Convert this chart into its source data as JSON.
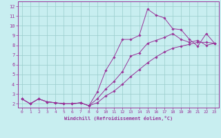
{
  "title": "",
  "xlabel": "Windchill (Refroidissement éolien,°C)",
  "ylabel": "",
  "bg_color": "#c8eef0",
  "line_color": "#993399",
  "grid_color": "#99cccc",
  "xlim": [
    -0.5,
    23.5
  ],
  "ylim": [
    1.6,
    12.5
  ],
  "xticks": [
    0,
    1,
    2,
    3,
    4,
    5,
    6,
    7,
    8,
    9,
    10,
    11,
    12,
    13,
    14,
    15,
    16,
    17,
    18,
    19,
    20,
    21,
    22,
    23
  ],
  "yticks": [
    2,
    3,
    4,
    5,
    6,
    7,
    8,
    9,
    10,
    11,
    12
  ],
  "line1_x": [
    0,
    1,
    2,
    3,
    4,
    5,
    6,
    7,
    8,
    9,
    10,
    11,
    12,
    13,
    14,
    15,
    16,
    17,
    18,
    19,
    20,
    21,
    22,
    23
  ],
  "line1_y": [
    2.5,
    2.0,
    2.5,
    2.2,
    2.1,
    2.0,
    2.0,
    2.1,
    1.8,
    3.2,
    5.4,
    6.8,
    8.6,
    8.6,
    9.0,
    11.7,
    11.1,
    10.8,
    9.7,
    9.6,
    8.6,
    7.9,
    9.2,
    8.2
  ],
  "line2_x": [
    0,
    1,
    2,
    3,
    4,
    5,
    6,
    7,
    8,
    9,
    10,
    11,
    12,
    13,
    14,
    15,
    16,
    17,
    18,
    19,
    20,
    21,
    22,
    23
  ],
  "line2_y": [
    2.5,
    2.0,
    2.5,
    2.2,
    2.1,
    2.0,
    2.0,
    2.1,
    1.8,
    2.5,
    3.5,
    4.3,
    5.3,
    6.9,
    7.2,
    8.2,
    8.5,
    8.8,
    9.2,
    8.6,
    8.3,
    8.5,
    8.0,
    8.2
  ],
  "line3_x": [
    0,
    1,
    2,
    3,
    4,
    5,
    6,
    7,
    8,
    9,
    10,
    11,
    12,
    13,
    14,
    15,
    16,
    17,
    18,
    19,
    20,
    21,
    22,
    23
  ],
  "line3_y": [
    2.5,
    2.0,
    2.5,
    2.2,
    2.1,
    2.0,
    2.0,
    2.1,
    1.8,
    2.1,
    2.8,
    3.3,
    4.0,
    4.8,
    5.5,
    6.2,
    6.8,
    7.3,
    7.7,
    7.9,
    8.1,
    8.3,
    8.3,
    8.2
  ]
}
